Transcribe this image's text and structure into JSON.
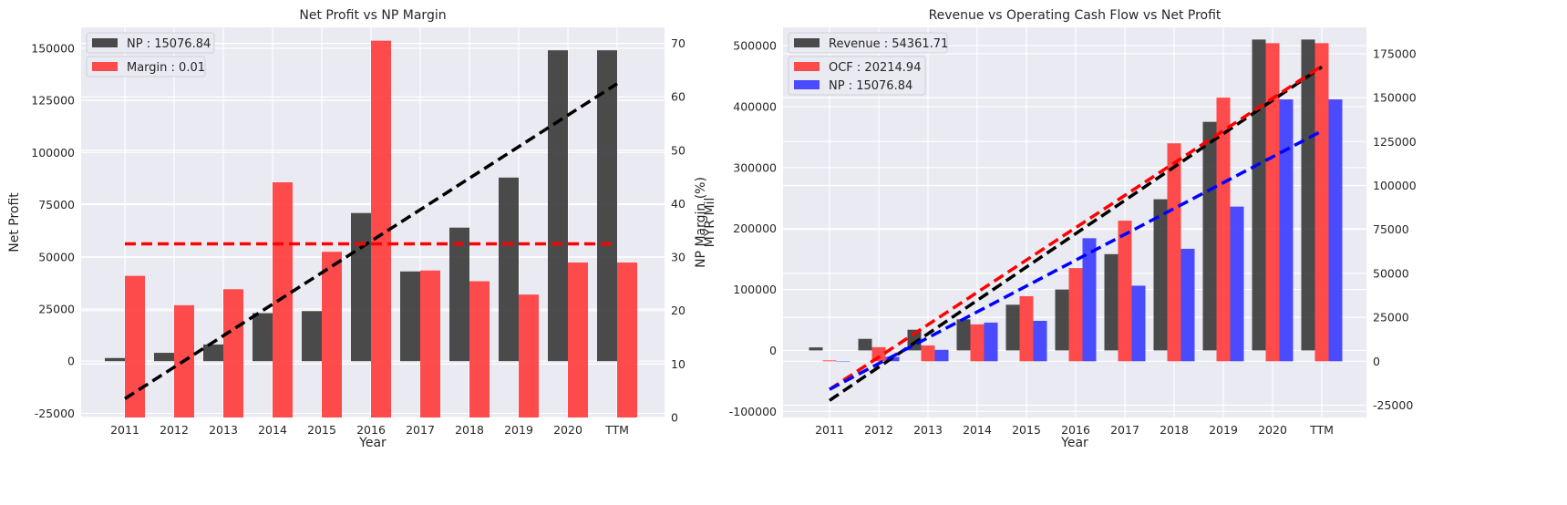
{
  "chart_data": [
    {
      "type": "bar",
      "title": "Net Profit vs NP Margin",
      "xlabel": "Year",
      "ylabel": "Net Profit",
      "ylabel_right": "NP Margin (%)",
      "ylabel_right_overlap": "MYR Mil",
      "categories": [
        "2011",
        "2012",
        "2013",
        "2014",
        "2015",
        "2016",
        "2017",
        "2018",
        "2019",
        "2020",
        "TTM"
      ],
      "ylim": [
        -27000,
        160000
      ],
      "yticks": [
        -25000,
        0,
        25000,
        50000,
        75000,
        100000,
        125000,
        150000
      ],
      "ylim_right": [
        0,
        73
      ],
      "yticks_right": [
        0,
        10,
        20,
        30,
        40,
        50,
        60,
        70
      ],
      "grid": true,
      "legend_placement": "top-left",
      "series": [
        {
          "name": "NP : 15076.84",
          "axis": "left",
          "color": "#333333",
          "values": [
            1500,
            4000,
            8000,
            23000,
            24000,
            71000,
            43000,
            64000,
            88000,
            149000,
            149000
          ]
        },
        {
          "name": "Margin : 0.01",
          "axis": "right",
          "color": "#ff3333",
          "values": [
            26.5,
            21,
            24,
            44,
            31,
            70.5,
            27.5,
            25.5,
            23,
            29,
            29
          ]
        }
      ],
      "trendlines": [
        {
          "axis": "left",
          "color": "#000000",
          "from": -18000,
          "to": 133000
        },
        {
          "axis": "right",
          "color": "#ff0000",
          "from": 32.5,
          "to": 32.5
        }
      ]
    },
    {
      "type": "bar",
      "title": "Revenue vs Operating Cash Flow vs Net Profit",
      "xlabel": "Year",
      "categories": [
        "2011",
        "2012",
        "2013",
        "2014",
        "2015",
        "2016",
        "2017",
        "2018",
        "2019",
        "2020",
        "TTM"
      ],
      "ylim": [
        -110000,
        530000
      ],
      "yticks": [
        -100000,
        0,
        100000,
        200000,
        300000,
        400000,
        500000
      ],
      "ylim_right": [
        -32000,
        190000
      ],
      "yticks_right": [
        -25000,
        0,
        25000,
        50000,
        75000,
        100000,
        125000,
        150000,
        175000
      ],
      "grid": true,
      "legend_placement": "top-left",
      "series": [
        {
          "name": "Revenue : 54361.71",
          "axis": "left",
          "color": "#333333",
          "values": [
            5000,
            19000,
            34000,
            51000,
            75000,
            100000,
            158000,
            248000,
            375000,
            510000,
            510000
          ]
        },
        {
          "name": "OCF : 20214.94",
          "axis": "right",
          "color": "#ff3333",
          "values": [
            500,
            8000,
            9000,
            21000,
            37000,
            53000,
            80000,
            124000,
            150000,
            181000,
            181000
          ]
        },
        {
          "name": "NP : 15076.84",
          "axis": "right",
          "color": "#3333ff",
          "values": [
            0,
            2500,
            6500,
            22000,
            23000,
            70000,
            43000,
            64000,
            88000,
            149000,
            149000
          ]
        }
      ],
      "trendlines": [
        {
          "axis": "left",
          "color": "#000000",
          "from": -82000,
          "to": 465000
        },
        {
          "axis": "right",
          "color": "#ff0000",
          "from": -16000,
          "to": 168000
        },
        {
          "axis": "right",
          "color": "#0000ff",
          "from": -16000,
          "to": 131000
        }
      ]
    }
  ]
}
